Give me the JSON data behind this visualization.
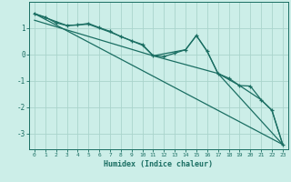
{
  "xlabel": "Humidex (Indice chaleur)",
  "bg_color": "#cceee8",
  "grid_color": "#aad4cc",
  "line_color": "#1a6e62",
  "xlim": [
    -0.5,
    23.5
  ],
  "ylim": [
    -3.6,
    2.0
  ],
  "yticks": [
    -3,
    -2,
    -1,
    0,
    1
  ],
  "xticks": [
    0,
    1,
    2,
    3,
    4,
    5,
    6,
    7,
    8,
    9,
    10,
    11,
    12,
    13,
    14,
    15,
    16,
    17,
    18,
    19,
    20,
    21,
    22,
    23
  ],
  "series_main": [
    [
      0,
      1.55
    ],
    [
      1,
      1.42
    ],
    [
      2,
      1.2
    ],
    [
      3,
      1.1
    ],
    [
      4,
      1.12
    ],
    [
      5,
      1.18
    ],
    [
      6,
      1.02
    ],
    [
      7,
      0.88
    ],
    [
      8,
      0.68
    ],
    [
      9,
      0.52
    ],
    [
      10,
      0.38
    ],
    [
      11,
      -0.05
    ],
    [
      12,
      -0.08
    ],
    [
      13,
      0.05
    ],
    [
      14,
      0.18
    ],
    [
      15,
      0.72
    ],
    [
      16,
      0.12
    ],
    [
      17,
      -0.72
    ],
    [
      18,
      -0.9
    ],
    [
      19,
      -1.18
    ],
    [
      20,
      -1.2
    ],
    [
      21,
      -1.72
    ],
    [
      22,
      -2.12
    ],
    [
      23,
      -3.42
    ]
  ],
  "line_smooth": [
    [
      0,
      1.55
    ],
    [
      3,
      1.1
    ],
    [
      5,
      1.15
    ],
    [
      7,
      0.85
    ],
    [
      10,
      0.35
    ],
    [
      11,
      -0.05
    ],
    [
      14,
      0.18
    ],
    [
      15,
      0.72
    ],
    [
      16,
      0.12
    ],
    [
      17,
      -0.72
    ],
    [
      19,
      -1.18
    ],
    [
      21,
      -1.72
    ],
    [
      22,
      -2.12
    ],
    [
      23,
      -3.42
    ]
  ],
  "line_straight": [
    [
      0,
      1.55
    ],
    [
      23,
      -3.42
    ]
  ],
  "line_mid": [
    [
      0,
      1.3
    ],
    [
      11,
      -0.05
    ],
    [
      17,
      -0.72
    ],
    [
      23,
      -3.42
    ]
  ]
}
